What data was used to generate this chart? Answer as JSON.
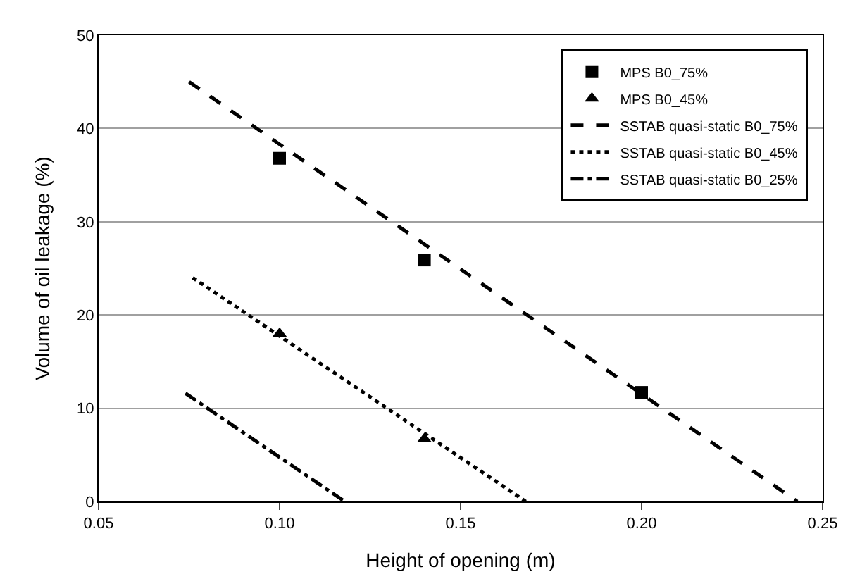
{
  "chart_data": {
    "type": "scatter",
    "xlabel": "Height of opening (m)",
    "ylabel": "Volume of oil leakage (%)",
    "xlim": [
      0.05,
      0.25
    ],
    "xticks": [
      {
        "value": 0.05,
        "label": "0.05"
      },
      {
        "value": 0.1,
        "label": "0.10"
      },
      {
        "value": 0.15,
        "label": "0.15"
      },
      {
        "value": 0.2,
        "label": "0.20"
      },
      {
        "value": 0.25,
        "label": "0.25"
      }
    ],
    "ylim": [
      0,
      50
    ],
    "yticks": [
      0,
      10,
      20,
      30,
      40,
      50
    ],
    "grid": "y",
    "legend": "top right",
    "series": [
      {
        "name": "MPS B0_75%",
        "marker": "square",
        "color": "#000000",
        "x": [
          0.1,
          0.14,
          0.2
        ],
        "values": [
          36.8,
          25.9,
          11.7
        ]
      },
      {
        "name": "MPS B0_45%",
        "marker": "triangle",
        "color": "#000000",
        "x": [
          0.1,
          0.14
        ],
        "values": [
          18,
          6.7
        ]
      },
      {
        "name": "SSTAB quasi-static B0_75%",
        "type": "line",
        "line_style": "dashed",
        "color": "#000000",
        "x": [
          0.075,
          0.243
        ],
        "values": [
          45,
          0
        ]
      },
      {
        "name": "SSTAB quasi-static B0_45%",
        "type": "line",
        "line_style": "dotted",
        "color": "#000000",
        "x": [
          0.076,
          0.168
        ],
        "values": [
          24,
          0
        ]
      },
      {
        "name": "SSTAB quasi-static B0_25%",
        "type": "line",
        "line_style": "dashdot",
        "color": "#000000",
        "x": [
          0.074,
          0.118
        ],
        "values": [
          11.6,
          0
        ]
      }
    ]
  }
}
